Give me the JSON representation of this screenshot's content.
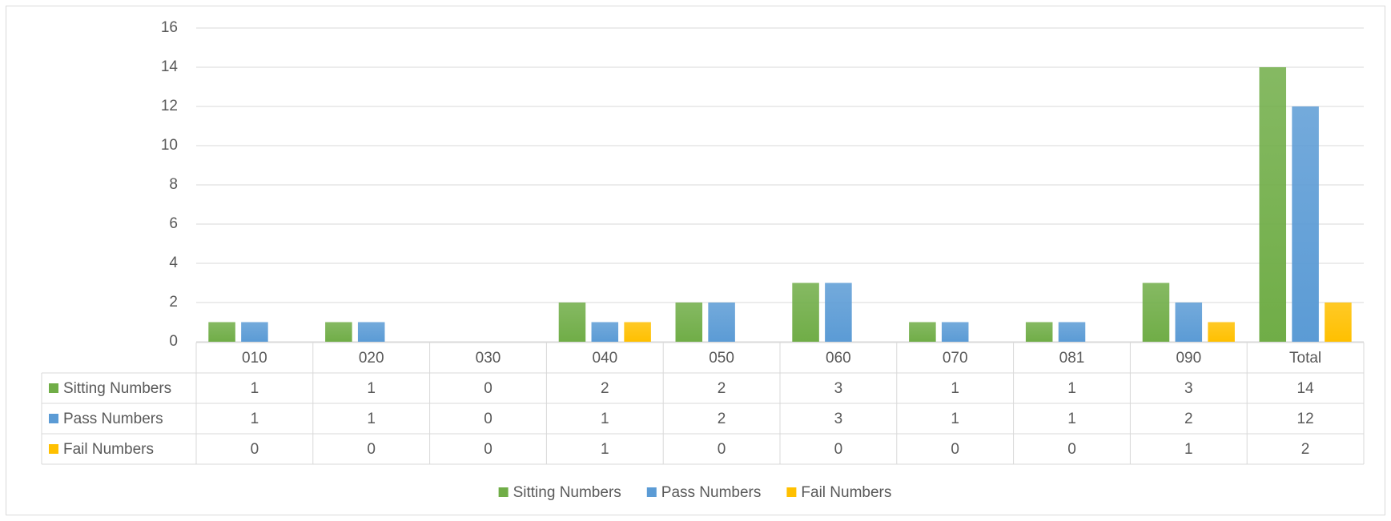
{
  "chart_data": {
    "type": "bar",
    "categories": [
      "010",
      "020",
      "030",
      "040",
      "050",
      "060",
      "070",
      "081",
      "090",
      "Total"
    ],
    "series": [
      {
        "name": "Sitting Numbers",
        "color": "#70ad47",
        "values": [
          1,
          1,
          0,
          2,
          2,
          3,
          1,
          1,
          3,
          14
        ]
      },
      {
        "name": "Pass Numbers",
        "color": "#5b9bd5",
        "values": [
          1,
          1,
          0,
          1,
          2,
          3,
          1,
          1,
          2,
          12
        ]
      },
      {
        "name": "Fail Numbers",
        "color": "#ffc000",
        "values": [
          0,
          0,
          0,
          1,
          0,
          0,
          0,
          0,
          1,
          2
        ]
      }
    ],
    "ylim": [
      0,
      16
    ],
    "yticks": [
      0,
      2,
      4,
      6,
      8,
      10,
      12,
      14,
      16
    ],
    "grid": true,
    "legend": "bottom"
  }
}
